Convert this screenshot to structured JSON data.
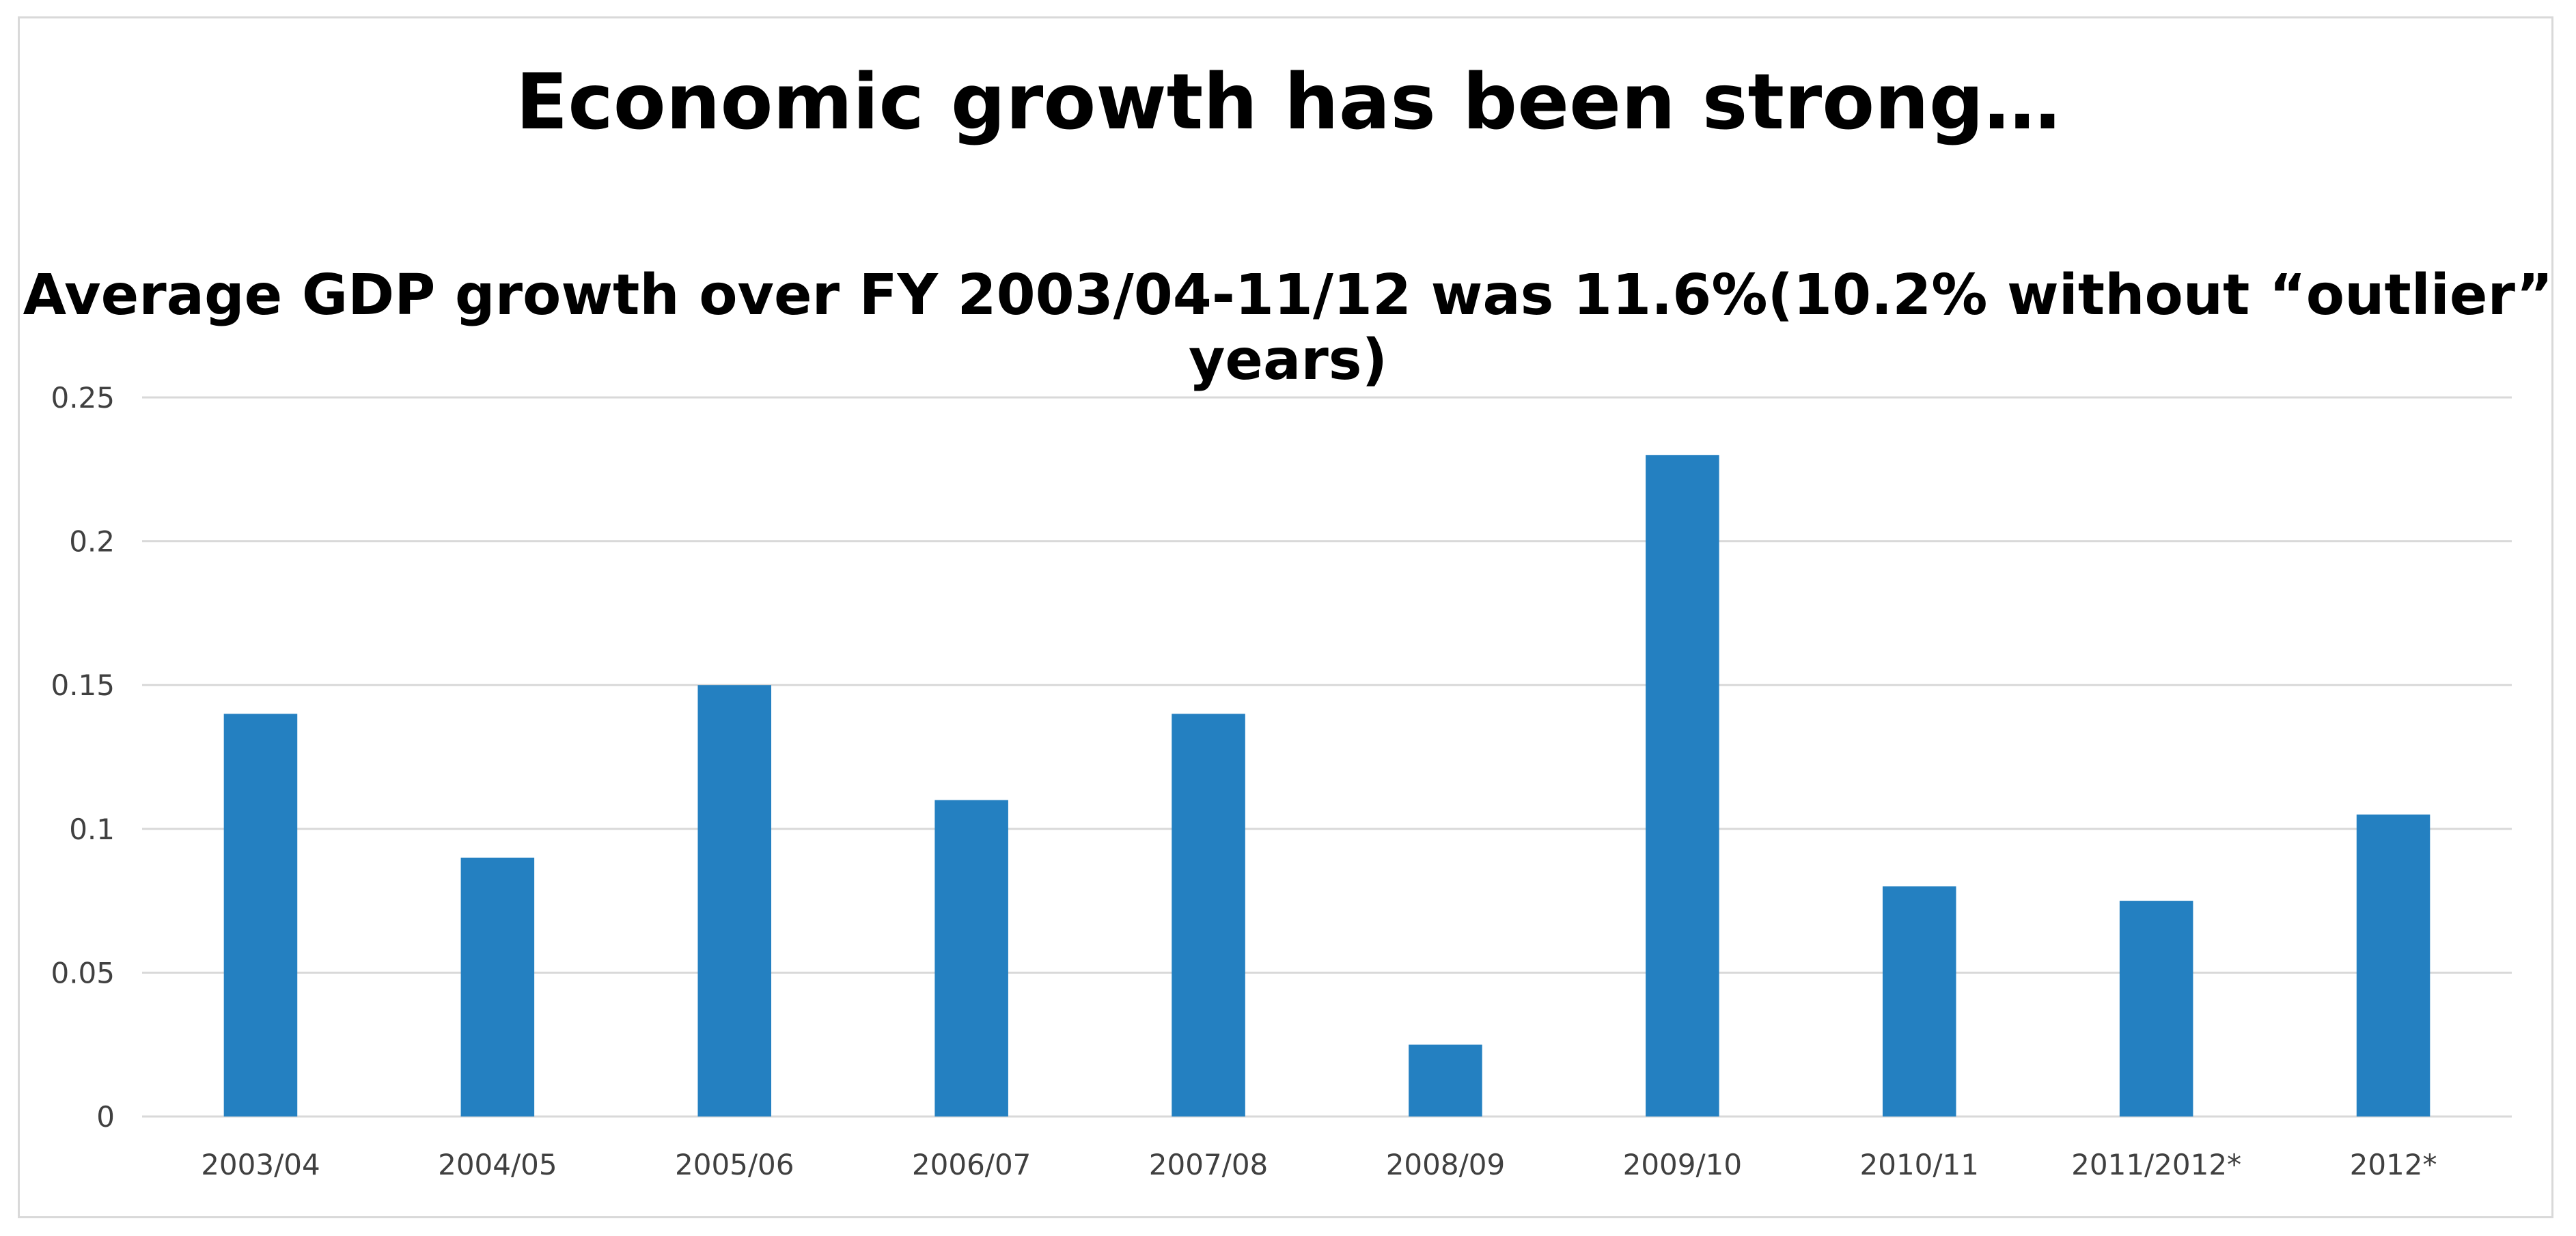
{
  "chart_data": {
    "type": "bar",
    "title": "Economic growth has been strong…",
    "subtitle": "Average GDP growth over FY 2003/04-11/12 was 11.6%(10.2% without “outlier” years)",
    "xlabel": "",
    "ylabel": "",
    "categories": [
      "2003/04",
      "2004/05",
      "2005/06",
      "2006/07",
      "2007/08",
      "2008/09",
      "2009/10",
      "2010/11",
      "2011/2012*",
      "2012*"
    ],
    "values": [
      0.14,
      0.09,
      0.15,
      0.11,
      0.14,
      0.025,
      0.23,
      0.08,
      0.075,
      0.105
    ],
    "ylim": [
      0,
      0.25
    ],
    "yticks": [
      0,
      0.05,
      0.1,
      0.15,
      0.2,
      0.25
    ],
    "ytick_labels": [
      "0",
      "0.05",
      "0.1",
      "0.15",
      "0.2",
      "0.25"
    ],
    "grid": true,
    "legend": "none",
    "bar_color": "#2480c1",
    "grid_color": "#d9d9d9"
  }
}
